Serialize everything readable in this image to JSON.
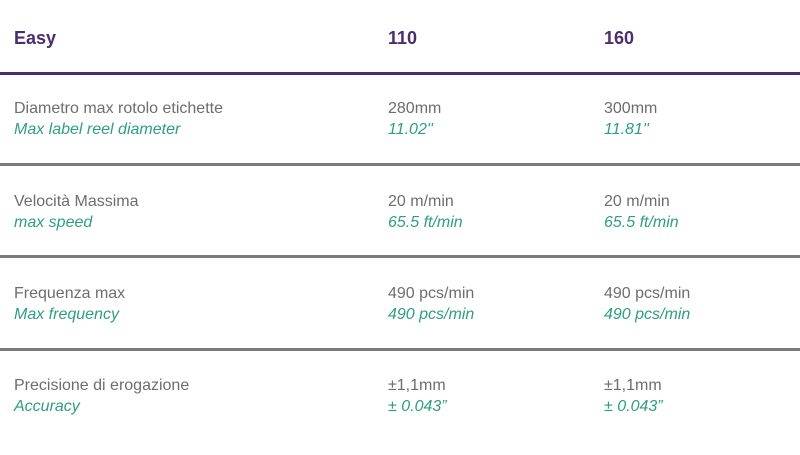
{
  "header": {
    "product": "Easy",
    "model_1": "110",
    "model_2": "160"
  },
  "rows": [
    {
      "label_it": "Diametro max rotolo etichette",
      "label_en": "Max label reel diameter",
      "m1_primary": "280mm",
      "m1_secondary": "11.02''",
      "m2_primary": "300mm",
      "m2_secondary": "11.81''"
    },
    {
      "label_it": "Velocità Massima",
      "label_en": "max speed",
      "m1_primary": "20 m/min",
      "m1_secondary": "65.5 ft/min",
      "m2_primary": "20 m/min",
      "m2_secondary": "65.5 ft/min"
    },
    {
      "label_it": "Frequenza max",
      "label_en": "Max frequency",
      "m1_primary": "490 pcs/min",
      "m1_secondary": "490 pcs/min",
      "m2_primary": "490 pcs/min",
      "m2_secondary": "490 pcs/min"
    },
    {
      "label_it": "Precisione di erogazione",
      "label_en": "Accuracy",
      "m1_primary": "±1,1mm",
      "m1_secondary": "± 0.043”",
      "m2_primary": "±1,1mm",
      "m2_secondary": "± 0.043”"
    }
  ],
  "colors": {
    "header_text": "#4a2d6e",
    "header_rule": "#4a2d6e",
    "row_rule": "#7a7a7a",
    "primary_text": "#6d6d6d",
    "secondary_text": "#2e9e82"
  }
}
